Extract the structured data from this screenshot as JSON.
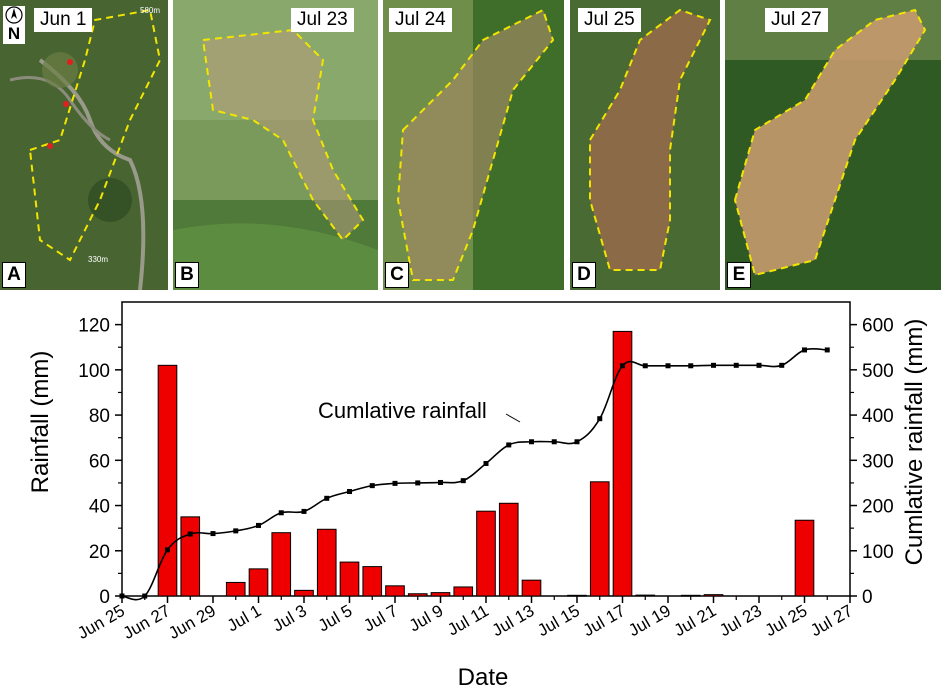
{
  "photos": {
    "north_label": "N",
    "scale_top": "580m",
    "scale_bottom": "330m",
    "panels": [
      {
        "letter": "A",
        "date": "Jun  1"
      },
      {
        "letter": "B",
        "date": "Jul 23"
      },
      {
        "letter": "C",
        "date": "Jul 24"
      },
      {
        "letter": "D",
        "date": "Jul 25"
      },
      {
        "letter": "E",
        "date": "Jul 27"
      }
    ]
  },
  "chart_data": {
    "type": "bar",
    "xlabel": "Date",
    "ylabel": "Rainfall (mm)",
    "ylabel_right": "Cumlative rainfall (mm)",
    "annotation": "Cumlative rainfall",
    "xlim": [
      0,
      32
    ],
    "x_tick_labels": [
      "Jun 25",
      "Jun 27",
      "Jun 29",
      "Jul 1",
      "Jul 3",
      "Jul 5",
      "Jul 7",
      "Jul 9",
      "Jul 11",
      "Jul 13",
      "Jul 15",
      "Jul 17",
      "Jul 19",
      "Jul 21",
      "Jul 23",
      "Jul 25",
      "Jul 27"
    ],
    "ylim": [
      0,
      130
    ],
    "y_ticks": [
      0,
      20,
      40,
      60,
      80,
      100,
      120
    ],
    "ylim_right": [
      0,
      650
    ],
    "y_ticks_right": [
      0,
      100,
      200,
      300,
      400,
      500,
      600
    ],
    "bar_color": "#ee0000",
    "line_color": "#000000",
    "series": [
      {
        "name": "Rainfall",
        "kind": "bar",
        "x": [
          "Jun 27",
          "Jun 28",
          "Jun 30",
          "Jul 1",
          "Jul 2",
          "Jul 3",
          "Jul 4",
          "Jul 5",
          "Jul 6",
          "Jul 7",
          "Jul 8",
          "Jul 9",
          "Jul 10",
          "Jul 11",
          "Jul 12",
          "Jul 13",
          "Jul 15",
          "Jul 16",
          "Jul 17",
          "Jul 18",
          "Jul 20",
          "Jul 21",
          "Jul 25"
        ],
        "values": [
          102,
          35,
          6,
          12,
          28,
          2.5,
          29.5,
          15,
          13,
          4.5,
          1,
          1.5,
          4,
          37.5,
          41,
          7,
          0.3,
          50.5,
          117,
          0.4,
          0.3,
          0.6,
          33.5
        ]
      },
      {
        "name": "Cumlative rainfall",
        "kind": "line",
        "x": [
          "Jun 25",
          "Jun 26",
          "Jun 27",
          "Jun 28",
          "Jun 29",
          "Jun 30",
          "Jul 1",
          "Jul 2",
          "Jul 3",
          "Jul 4",
          "Jul 5",
          "Jul 6",
          "Jul 7",
          "Jul 8",
          "Jul 9",
          "Jul 10",
          "Jul 11",
          "Jul 12",
          "Jul 13",
          "Jul 14",
          "Jul 15",
          "Jul 16",
          "Jul 17",
          "Jul 18",
          "Jul 19",
          "Jul 20",
          "Jul 21",
          "Jul 22",
          "Jul 23",
          "Jul 24",
          "Jul 25",
          "Jul 26"
        ],
        "values": [
          0,
          0,
          102,
          137,
          138,
          144,
          156,
          184,
          187,
          216,
          231,
          244,
          249,
          250,
          251,
          255,
          293,
          334,
          341,
          341,
          341,
          392,
          509,
          509,
          509,
          509,
          510,
          510,
          510,
          510,
          544,
          544
        ]
      }
    ]
  }
}
